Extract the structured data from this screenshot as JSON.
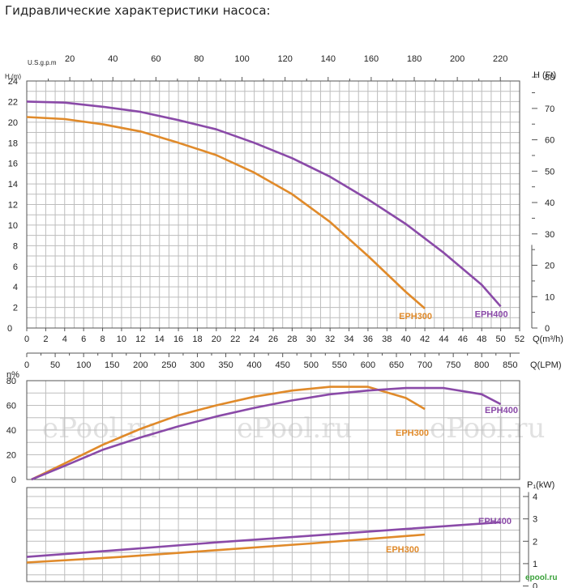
{
  "page": {
    "title": "Гидравлические характеристики насоса:"
  },
  "watermark": {
    "text": "ePool.ru",
    "logo": "epool.ru"
  },
  "colors": {
    "EPH300": "#e08a2a",
    "EPH400": "#8a4aa8",
    "grid": "#bdbdbd"
  },
  "chart_data": [
    {
      "id": "head",
      "type": "line",
      "xlabel": "Q(m³/h)",
      "ylabel": "H (m)",
      "y2label": "H (Ft)",
      "x2label": "U.S.g.p.m",
      "x3label": "Q(LPM)",
      "xlim": [
        0,
        52
      ],
      "ylim": [
        0,
        24
      ],
      "x_ticks": [
        0,
        2,
        4,
        6,
        8,
        10,
        12,
        14,
        16,
        18,
        20,
        22,
        24,
        26,
        28,
        30,
        32,
        34,
        36,
        38,
        40,
        42,
        44,
        46,
        48,
        50,
        52
      ],
      "y_ticks": [
        0,
        2,
        4,
        6,
        8,
        10,
        12,
        14,
        16,
        18,
        20,
        22,
        24
      ],
      "x2_ticks": [
        20,
        40,
        60,
        80,
        100,
        120,
        140,
        160,
        180,
        200,
        220
      ],
      "x3_ticks": [
        0,
        50,
        100,
        150,
        200,
        250,
        300,
        350,
        400,
        450,
        500,
        550,
        600,
        650,
        700,
        750,
        800,
        850
      ],
      "y2_ticks": [
        0,
        10,
        20,
        30,
        40,
        50,
        60,
        70,
        80
      ],
      "grid": true,
      "series": [
        {
          "name": "EPH300",
          "x": [
            0,
            4,
            8,
            12,
            16,
            20,
            24,
            28,
            32,
            36,
            40,
            42
          ],
          "y": [
            20.5,
            20.3,
            19.8,
            19.1,
            18.0,
            16.8,
            15.1,
            13.0,
            10.3,
            7.0,
            3.5,
            1.9
          ]
        },
        {
          "name": "EPH400",
          "x": [
            0,
            4,
            8,
            12,
            16,
            20,
            24,
            28,
            32,
            36,
            40,
            44,
            48,
            50
          ],
          "y": [
            22.0,
            21.9,
            21.5,
            21.0,
            20.2,
            19.3,
            18.0,
            16.5,
            14.7,
            12.5,
            10.1,
            7.3,
            4.2,
            2.1
          ]
        }
      ]
    },
    {
      "id": "efficiency",
      "type": "line",
      "ylabel": "η%",
      "ylim": [
        0,
        80
      ],
      "y_ticks": [
        0,
        20,
        40,
        60,
        80
      ],
      "xlim": [
        0,
        52
      ],
      "grid": true,
      "series": [
        {
          "name": "EPH300",
          "x": [
            0.5,
            4,
            8,
            12,
            16,
            20,
            24,
            28,
            32,
            36,
            40,
            42
          ],
          "y": [
            0,
            13,
            28,
            41,
            52,
            60,
            67,
            72,
            75,
            75,
            66,
            57
          ]
        },
        {
          "name": "EPH400",
          "x": [
            0.5,
            4,
            8,
            12,
            16,
            20,
            24,
            28,
            32,
            36,
            40,
            44,
            48,
            50
          ],
          "y": [
            0,
            11,
            24,
            34,
            43,
            51,
            58,
            64,
            69,
            72,
            74,
            74,
            69,
            61
          ]
        }
      ]
    },
    {
      "id": "power",
      "type": "line",
      "ylabel": "P₁(kW)",
      "ylim": [
        0,
        4
      ],
      "y_ticks": [
        0,
        1,
        2,
        3,
        4
      ],
      "xlim": [
        0,
        52
      ],
      "grid": true,
      "series": [
        {
          "name": "EPH300",
          "x": [
            0,
            10,
            20,
            30,
            42
          ],
          "y": [
            1.05,
            1.3,
            1.6,
            1.9,
            2.3
          ]
        },
        {
          "name": "EPH400",
          "x": [
            0,
            10,
            20,
            30,
            40,
            50
          ],
          "y": [
            1.3,
            1.62,
            1.95,
            2.25,
            2.55,
            2.85
          ]
        }
      ]
    }
  ]
}
